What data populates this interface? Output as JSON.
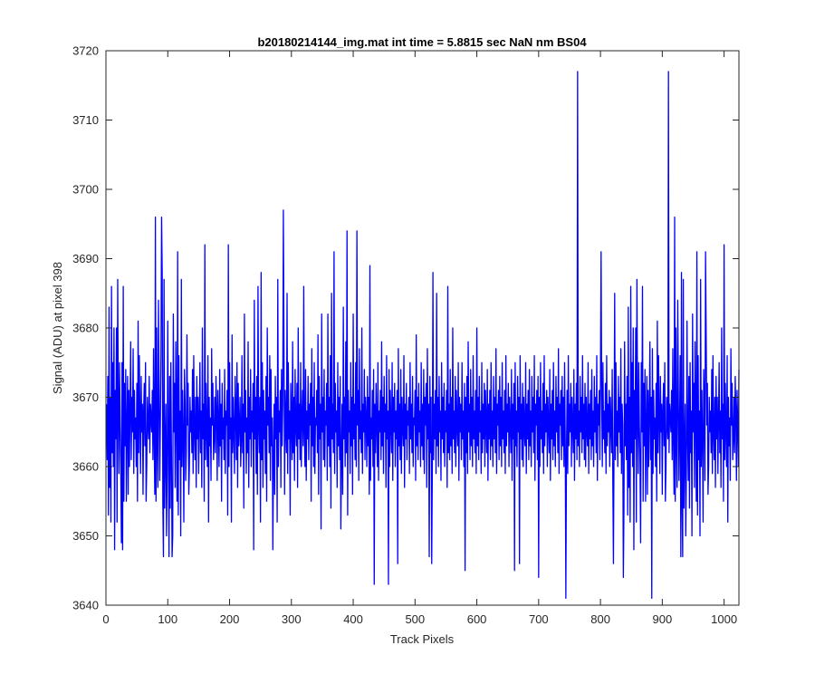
{
  "chart_data": {
    "type": "line",
    "title": "b20180214144_img.mat int time = 5.8815 sec  NaN nm BS04",
    "xlabel": "Track Pixels",
    "ylabel": "Signal (ADU) at pixel 398",
    "xlim": [
      0,
      1024
    ],
    "ylim": [
      3640,
      3720
    ],
    "xticks": [
      0,
      100,
      200,
      300,
      400,
      500,
      600,
      700,
      800,
      900,
      1000
    ],
    "yticks": [
      3640,
      3650,
      3660,
      3670,
      3680,
      3690,
      3700,
      3710,
      3720
    ],
    "grid": false,
    "box": true,
    "series": [
      {
        "color": "#0000ff",
        "x_start": 1,
        "x_step": 1,
        "peaks": [
          {
            "x": 90,
            "y": 3696
          },
          {
            "x": 287,
            "y": 3697
          },
          {
            "x": 406,
            "y": 3694
          },
          {
            "x": 910,
            "y": 3717
          },
          {
            "x": 970,
            "y": 3691
          },
          {
            "x": 457,
            "y": 3643
          },
          {
            "x": 883,
            "y": 3641
          },
          {
            "x": 837,
            "y": 3644
          },
          {
            "x": 661,
            "y": 3645
          },
          {
            "x": 27,
            "y": 3648
          },
          {
            "x": 102,
            "y": 3647
          },
          {
            "x": 107,
            "y": 3647
          },
          {
            "x": 270,
            "y": 3648
          },
          {
            "x": 380,
            "y": 3651
          },
          {
            "x": 527,
            "y": 3646
          },
          {
            "x": 821,
            "y": 3646
          }
        ],
        "values": [
          3669,
          3661,
          3673,
          3653,
          3683,
          3657,
          3670,
          3652,
          3686,
          3662,
          3675,
          3660,
          3680,
          3648,
          3671,
          3664,
          3680,
          3652,
          3687,
          3668,
          3659,
          3675,
          3666,
          3660,
          3649,
          3675,
          3665,
          3686,
          3655,
          3672,
          3663,
          3674,
          3655,
          3666,
          3673,
          3656,
          3671,
          3660,
          3668,
          3678,
          3661,
          3670,
          3665,
          3677,
          3659,
          3671,
          3664,
          3667,
          3660,
          3672,
          3655,
          3681,
          3662,
          3676,
          3667,
          3659,
          3673,
          3665,
          3669,
          3656,
          3668,
          3672,
          3663,
          3675,
          3655,
          3660,
          3670,
          3666,
          3664,
          3673,
          3662,
          3669,
          3667,
          3665,
          3671,
          3661,
          3677,
          3664,
          3656,
          3696,
          3655,
          3680,
          3663,
          3657,
          3684,
          3671,
          3658,
          3666,
          3676,
          3647,
          3688,
          3655,
          3647,
          3687,
          3654,
          3662,
          3669,
          3650,
          3659,
          3681,
          3664,
          3658,
          3673,
          3654,
          3675,
          3662,
          3668,
          3650,
          3682,
          3665,
          3672,
          3657,
          3678,
          3667,
          3655,
          3691,
          3653,
          3676,
          3661,
          3668,
          3650,
          3687,
          3660,
          3671,
          3664,
          3652,
          3674,
          3669,
          3658,
          3662,
          3679,
          3666,
          3672,
          3656,
          3660,
          3670,
          3665,
          3668,
          3662,
          3674,
          3659,
          3676,
          3665,
          3661,
          3670,
          3657,
          3673,
          3664,
          3670,
          3659,
          3667,
          3675,
          3662,
          3668,
          3657,
          3680,
          3664,
          3669,
          3655,
          3692,
          3661,
          3672,
          3665,
          3660,
          3676,
          3652,
          3670,
          3663,
          3667,
          3658,
          3677,
          3666,
          3672,
          3661,
          3664,
          3670,
          3662,
          3673,
          3668,
          3658,
          3671,
          3666,
          3660,
          3674,
          3663,
          3669,
          3655,
          3672,
          3664,
          3667,
          3661,
          3674,
          3659,
          3668,
          3666,
          3671,
          3653,
          3692,
          3660,
          3675,
          3664,
          3667,
          3652,
          3679,
          3662,
          3670,
          3665,
          3659,
          3673,
          3668,
          3661,
          3675,
          3657,
          3672,
          3663,
          3666,
          3670,
          3660,
          3664,
          3676,
          3662,
          3669,
          3654,
          3682,
          3665,
          3671,
          3659,
          3667,
          3662,
          3678,
          3657,
          3670,
          3664,
          3674,
          3660,
          3668,
          3665,
          3672,
          3648,
          3684,
          3664,
          3670,
          3659,
          3673,
          3656,
          3686,
          3666,
          3662,
          3670,
          3652,
          3688,
          3661,
          3675,
          3657,
          3671,
          3664,
          3668,
          3659,
          3673,
          3655,
          3680,
          3666,
          3670,
          3662,
          3676,
          3658,
          3674,
          3663,
          3667,
          3697,
          3661,
          3669,
          3656,
          3673,
          3664,
          3670,
          3652,
          3687,
          3660,
          3668,
          3665,
          3671,
          3657,
          3674,
          3663,
          3669,
          3660,
          3678,
          3656,
          3671,
          3666,
          3662,
          3685,
          3659,
          3675,
          3664,
          3668,
          3653,
          3672,
          3667,
          3661,
          3678,
          3662,
          3670,
          3658,
          3674,
          3666,
          3663,
          3672,
          3657,
          3680,
          3664,
          3669,
          3661,
          3675,
          3660,
          3667,
          3671,
          3663,
          3686,
          3665,
          3660,
          3674,
          3658,
          3668,
          3664,
          3673,
          3661,
          3669,
          3666,
          3672,
          3655,
          3677,
          3663,
          3670,
          3660,
          3675,
          3659,
          3667,
          3666,
          3671,
          3662,
          3679,
          3656,
          3673,
          3664,
          3669,
          3651,
          3682,
          3665,
          3670,
          3661,
          3674,
          3660,
          3668,
          3666,
          3672,
          3658,
          3682,
          3663,
          3670,
          3660,
          3676,
          3654,
          3685,
          3664,
          3669,
          3662,
          3691,
          3659,
          3672,
          3665,
          3668,
          3657,
          3675,
          3663,
          3670,
          3661,
          3673,
          3666,
          3662,
          3669,
          3656,
          3683,
          3664,
          3670,
          3660,
          3678,
          3662,
          3694,
          3653,
          3671,
          3665,
          3668,
          3659,
          3675,
          3663,
          3670,
          3656,
          3682,
          3664,
          3669,
          3661,
          3675,
          3660,
          3673,
          3666,
          3671,
          3658,
          3677,
          3664,
          3668,
          3662,
          3680,
          3659,
          3669,
          3665,
          3674,
          3661,
          3670,
          3667,
          3660,
          3673,
          3663,
          3670,
          3656,
          3689,
          3658,
          3667,
          3664,
          3671,
          3660,
          3674,
          3643,
          3669,
          3662,
          3672,
          3666,
          3660,
          3675,
          3658,
          3668,
          3665,
          3671,
          3661,
          3678,
          3663,
          3670,
          3659,
          3673,
          3665,
          3669,
          3657,
          3676,
          3664,
          3668,
          3661,
          3674,
          3660,
          3671,
          3666,
          3662,
          3675,
          3658,
          3670,
          3665,
          3672,
          3660,
          3668,
          3664,
          3671,
          3646,
          3677,
          3663,
          3669,
          3661,
          3674,
          3659,
          3670,
          3666,
          3663,
          3676,
          3657,
          3669,
          3664,
          3672,
          3661,
          3668,
          3666,
          3670,
          3659,
          3675,
          3664,
          3669,
          3662,
          3673,
          3660,
          3667,
          3666,
          3671,
          3658,
          3679,
          3663,
          3670,
          3661,
          3672,
          3665,
          3668,
          3660,
          3675,
          3663,
          3669,
          3661,
          3674,
          3659,
          3670,
          3666,
          3672,
          3657,
          3677,
          3664,
          3669,
          3647,
          3673,
          3662,
          3670,
          3666,
          3660,
          3688,
          3661,
          3669,
          3664,
          3671,
          3659,
          3685,
          3663,
          3670,
          3660,
          3673,
          3665,
          3668,
          3658,
          3675,
          3664,
          3670,
          3662,
          3672,
          3660,
          3668,
          3665,
          3671,
          3657,
          3686,
          3662,
          3669,
          3661,
          3674,
          3663,
          3670,
          3659,
          3680,
          3664,
          3668,
          3662,
          3673,
          3660,
          3671,
          3666,
          3663,
          3675,
          3658,
          3670,
          3665,
          3669,
          3661,
          3675,
          3664,
          3668,
          3660,
          3672,
          3645,
          3670,
          3662,
          3673,
          3659,
          3678,
          3665,
          3669,
          3661,
          3674,
          3663,
          3670,
          3660,
          3676,
          3664,
          3668,
          3662,
          3671,
          3659,
          3680,
          3663,
          3670,
          3661,
          3673,
          3665,
          3668,
          3659,
          3675,
          3662,
          3669,
          3664,
          3672,
          3660,
          3671,
          3666,
          3662,
          3674,
          3658,
          3669,
          3664,
          3671,
          3661,
          3675,
          3663,
          3668,
          3660,
          3673,
          3664,
          3670,
          3662,
          3677,
          3659,
          3669,
          3666,
          3671,
          3661,
          3673,
          3663,
          3670,
          3660,
          3675,
          3664,
          3668,
          3662,
          3671,
          3659,
          3676,
          3663,
          3669,
          3665,
          3672,
          3660,
          3670,
          3666,
          3662,
          3674,
          3658,
          3669,
          3664,
          3672,
          3661,
          3675,
          3663,
          3668,
          3660,
          3673,
          3665,
          3670,
          3646,
          3676,
          3664,
          3669,
          3661,
          3672,
          3660,
          3670,
          3665,
          3663,
          3675,
          3659,
          3669,
          3664,
          3671,
          3661,
          3674,
          3663,
          3668,
          3660,
          3673,
          3665,
          3670,
          3662,
          3676,
          3658,
          3669,
          3666,
          3671,
          3661,
          3673,
          3644,
          3670,
          3660,
          3675,
          3664,
          3668,
          3662,
          3672,
          3659,
          3676,
          3663,
          3669,
          3665,
          3671,
          3660,
          3670,
          3666,
          3662,
          3674,
          3658,
          3669,
          3664,
          3671,
          3661,
          3675,
          3663,
          3668,
          3660,
          3673,
          3665,
          3670,
          3662,
          3677,
          3659,
          3669,
          3666,
          3671,
          3661,
          3673,
          3663,
          3670,
          3660,
          3675,
          3664,
          3641,
          3662,
          3671,
          3659,
          3676,
          3663,
          3669,
          3665,
          3672,
          3660,
          3670,
          3666,
          3662,
          3674,
          3658,
          3669,
          3664,
          3672,
          3661,
          3717,
          3663,
          3668,
          3660,
          3673,
          3665,
          3670,
          3662,
          3676,
          3664,
          3669,
          3661,
          3672,
          3660,
          3670,
          3665,
          3663,
          3675,
          3659,
          3669,
          3664,
          3671,
          3661,
          3674,
          3663,
          3668,
          3660,
          3673,
          3665,
          3670,
          3662,
          3676,
          3658,
          3669,
          3666,
          3671,
          3661,
          3673,
          3691,
          3670,
          3660,
          3675,
          3664,
          3668,
          3662,
          3672,
          3659,
          3676,
          3663,
          3669,
          3665,
          3671,
          3660,
          3670,
          3666,
          3662,
          3674,
          3658,
          3669,
          3664,
          3685,
          3661,
          3675,
          3663,
          3668,
          3660,
          3673,
          3665,
          3670,
          3662,
          3677,
          3659,
          3669,
          3666,
          3671,
          3654,
          3678,
          3663
        ]
      }
    ]
  }
}
